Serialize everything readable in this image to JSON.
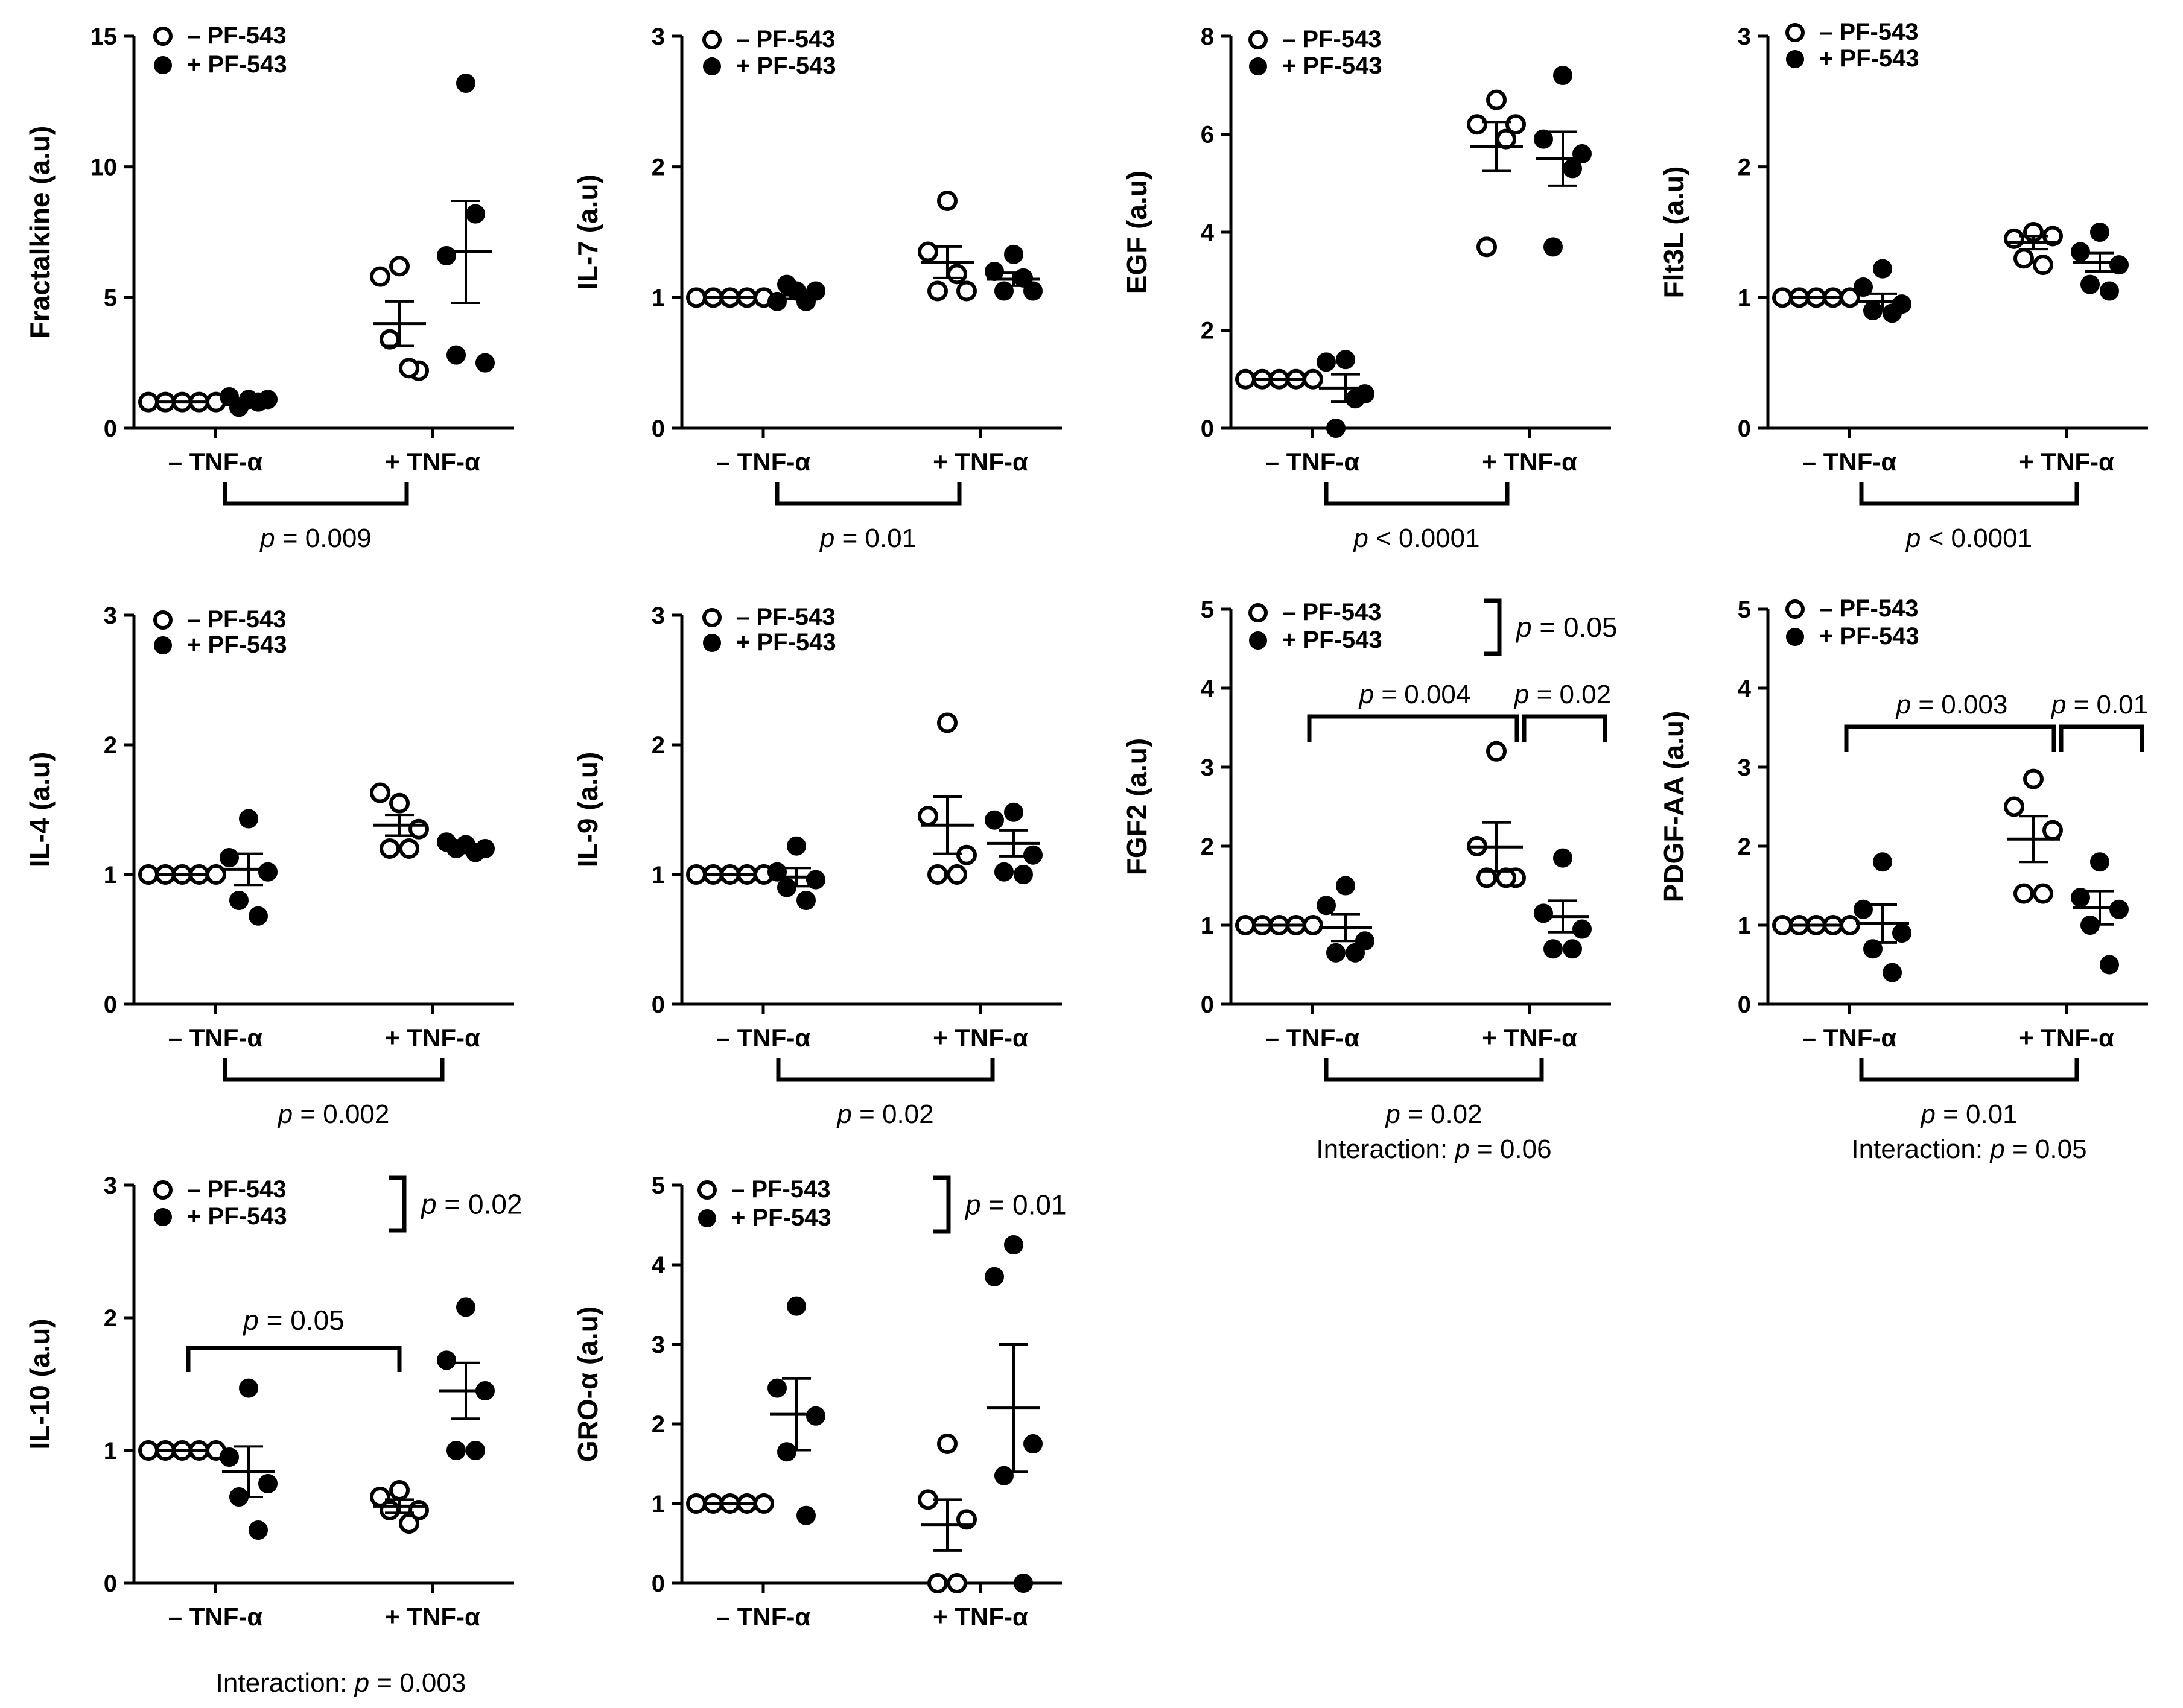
{
  "figure": {
    "x_categories": [
      "– TNF-α",
      "+ TNF-α"
    ],
    "legend": {
      "minus_label": "–  PF-543",
      "plus_label": "+  PF-543"
    },
    "p_prefix": "p",
    "interaction_prefix": "Interaction: "
  },
  "chart_data": [
    {
      "id": "fractalkine",
      "type": "scatter",
      "ylabel": "Fractalkine (a.u)",
      "ylim": [
        0,
        15
      ],
      "yticks": [
        0,
        5,
        10,
        15
      ],
      "groups": [
        {
          "condition": "– TNF-α",
          "treatment": "– PF-543",
          "points": [
            1,
            1,
            1,
            1,
            1
          ],
          "mean": 1,
          "sem": 0
        },
        {
          "condition": "– TNF-α",
          "treatment": "+ PF-543",
          "points": [
            1.1,
            1.2,
            1.1,
            0.8,
            1.0
          ],
          "mean": 1.05,
          "sem": 0.07
        },
        {
          "condition": "+ TNF-α",
          "treatment": "– PF-543",
          "points": [
            6.2,
            5.8,
            2.2,
            3.4,
            2.3
          ],
          "mean": 4.0,
          "sem": 0.85
        },
        {
          "condition": "+ TNF-α",
          "treatment": "+ PF-543",
          "points": [
            13.2,
            6.6,
            2.5,
            2.8,
            8.2
          ],
          "mean": 6.75,
          "sem": 1.95
        }
      ],
      "annotations": {
        "tnf_effect": "p = 0.009"
      }
    },
    {
      "id": "il7",
      "type": "scatter",
      "ylabel": "IL-7 (a.u)",
      "ylim": [
        0,
        3
      ],
      "yticks": [
        0,
        1,
        2,
        3
      ],
      "groups": [
        {
          "condition": "– TNF-α",
          "treatment": "– PF-543",
          "points": [
            1,
            1,
            1,
            1,
            1
          ],
          "mean": 1,
          "sem": 0
        },
        {
          "condition": "– TNF-α",
          "treatment": "+ PF-543",
          "points": [
            1.05,
            0.97,
            1.05,
            1.1,
            0.97
          ],
          "mean": 1.02,
          "sem": 0.03
        },
        {
          "condition": "+ TNF-α",
          "treatment": "– PF-543",
          "points": [
            1.74,
            1.35,
            1.05,
            1.05,
            1.18
          ],
          "mean": 1.27,
          "sem": 0.12
        },
        {
          "condition": "+ TNF-α",
          "treatment": "+ PF-543",
          "points": [
            1.33,
            1.2,
            1.05,
            1.05,
            1.15
          ],
          "mean": 1.14,
          "sem": 0.05
        }
      ],
      "annotations": {
        "tnf_effect": "p = 0.01"
      }
    },
    {
      "id": "egf",
      "type": "scatter",
      "ylabel": "EGF (a.u)",
      "ylim": [
        0,
        8
      ],
      "yticks": [
        0,
        2,
        4,
        6,
        8
      ],
      "groups": [
        {
          "condition": "– TNF-α",
          "treatment": "– PF-543",
          "points": [
            1,
            1,
            1,
            1,
            1
          ],
          "mean": 1,
          "sem": 0
        },
        {
          "condition": "– TNF-α",
          "treatment": "+ PF-543",
          "points": [
            1.4,
            1.35,
            0.7,
            0.0,
            0.6
          ],
          "mean": 0.82,
          "sem": 0.28
        },
        {
          "condition": "+ TNF-α",
          "treatment": "– PF-543",
          "points": [
            6.7,
            6.2,
            6.2,
            3.7,
            5.9
          ],
          "mean": 5.75,
          "sem": 0.5
        },
        {
          "condition": "+ TNF-α",
          "treatment": "+ PF-543",
          "points": [
            7.2,
            5.9,
            5.6,
            3.7,
            5.3
          ],
          "mean": 5.5,
          "sem": 0.55
        }
      ],
      "annotations": {
        "tnf_effect": "p < 0.0001"
      }
    },
    {
      "id": "flt3l",
      "type": "scatter",
      "ylabel": "Flt3L (a.u)",
      "ylim": [
        0,
        3
      ],
      "yticks": [
        0,
        1,
        2,
        3
      ],
      "groups": [
        {
          "condition": "– TNF-α",
          "treatment": "– PF-543",
          "points": [
            1,
            1,
            1,
            1,
            1
          ],
          "mean": 1,
          "sem": 0
        },
        {
          "condition": "– TNF-α",
          "treatment": "+ PF-543",
          "points": [
            1.22,
            1.08,
            0.95,
            0.9,
            0.88
          ],
          "mean": 0.97,
          "sem": 0.06
        },
        {
          "condition": "+ TNF-α",
          "treatment": "– PF-543",
          "points": [
            1.5,
            1.45,
            1.47,
            1.3,
            1.25
          ],
          "mean": 1.42,
          "sem": 0.05
        },
        {
          "condition": "+ TNF-α",
          "treatment": "+ PF-543",
          "points": [
            1.5,
            1.35,
            1.25,
            1.1,
            1.05
          ],
          "mean": 1.27,
          "sem": 0.07
        }
      ],
      "annotations": {
        "tnf_effect": "p < 0.0001"
      }
    },
    {
      "id": "il4",
      "type": "scatter",
      "ylabel": "IL-4 (a.u)",
      "ylim": [
        0,
        3
      ],
      "yticks": [
        0,
        1,
        2,
        3
      ],
      "groups": [
        {
          "condition": "– TNF-α",
          "treatment": "– PF-543",
          "points": [
            1,
            1,
            1,
            1,
            1
          ],
          "mean": 1,
          "sem": 0
        },
        {
          "condition": "– TNF-α",
          "treatment": "+ PF-543",
          "points": [
            1.43,
            1.13,
            1.02,
            0.8,
            0.68
          ],
          "mean": 1.04,
          "sem": 0.12
        },
        {
          "condition": "+ TNF-α",
          "treatment": "– PF-543",
          "points": [
            1.55,
            1.63,
            1.35,
            1.2,
            1.2
          ],
          "mean": 1.38,
          "sem": 0.08
        },
        {
          "condition": "+ TNF-α",
          "treatment": "+ PF-543",
          "points": [
            1.23,
            1.25,
            1.2,
            1.2,
            1.17
          ],
          "mean": 1.21,
          "sem": 0.01
        }
      ],
      "annotations": {
        "tnf_effect": "p = 0.002"
      }
    },
    {
      "id": "il9",
      "type": "scatter",
      "ylabel": "IL-9 (a.u)",
      "ylim": [
        0,
        3
      ],
      "yticks": [
        0,
        1,
        2,
        3
      ],
      "groups": [
        {
          "condition": "– TNF-α",
          "treatment": "– PF-543",
          "points": [
            1,
            1,
            1,
            1,
            1
          ],
          "mean": 1,
          "sem": 0
        },
        {
          "condition": "– TNF-α",
          "treatment": "+ PF-543",
          "points": [
            1.22,
            1.02,
            0.96,
            0.9,
            0.8
          ],
          "mean": 0.98,
          "sem": 0.07
        },
        {
          "condition": "+ TNF-α",
          "treatment": "– PF-543",
          "points": [
            2.17,
            1.45,
            1.15,
            1.0,
            1.0
          ],
          "mean": 1.38,
          "sem": 0.22
        },
        {
          "condition": "+ TNF-α",
          "treatment": "+ PF-543",
          "points": [
            1.48,
            1.42,
            1.15,
            1.02,
            1.0
          ],
          "mean": 1.24,
          "sem": 0.1
        }
      ],
      "annotations": {
        "tnf_effect": "p = 0.02"
      }
    },
    {
      "id": "fgf2",
      "type": "scatter",
      "ylabel": "FGF2 (a.u)",
      "ylim": [
        0,
        5
      ],
      "yticks": [
        0,
        1,
        2,
        3,
        4,
        5
      ],
      "groups": [
        {
          "condition": "– TNF-α",
          "treatment": "– PF-543",
          "points": [
            1,
            1,
            1,
            1,
            1
          ],
          "mean": 1,
          "sem": 0
        },
        {
          "condition": "– TNF-α",
          "treatment": "+ PF-543",
          "points": [
            1.5,
            1.25,
            0.8,
            0.65,
            0.65
          ],
          "mean": 0.97,
          "sem": 0.17
        },
        {
          "condition": "+ TNF-α",
          "treatment": "– PF-543",
          "points": [
            3.2,
            2.0,
            1.6,
            1.6,
            1.6
          ],
          "mean": 1.99,
          "sem": 0.31
        },
        {
          "condition": "+ TNF-α",
          "treatment": "+ PF-543",
          "points": [
            1.85,
            1.15,
            0.95,
            0.7,
            0.7
          ],
          "mean": 1.11,
          "sem": 0.2
        }
      ],
      "annotations": {
        "legend_bracket": "p = 0.05",
        "bracket_left": "p = 0.004",
        "bracket_right": "p = 0.02",
        "tnf_effect": "p = 0.02",
        "interaction": "p = 0.06"
      }
    },
    {
      "id": "pdgfaa",
      "type": "scatter",
      "ylabel": "PDGF-AA (a.u)",
      "ylim": [
        0,
        5
      ],
      "yticks": [
        0,
        1,
        2,
        3,
        4,
        5
      ],
      "groups": [
        {
          "condition": "– TNF-α",
          "treatment": "– PF-543",
          "points": [
            1,
            1,
            1,
            1,
            1
          ],
          "mean": 1,
          "sem": 0
        },
        {
          "condition": "– TNF-α",
          "treatment": "+ PF-543",
          "points": [
            1.8,
            1.2,
            0.9,
            0.7,
            0.4
          ],
          "mean": 1.02,
          "sem": 0.24
        },
        {
          "condition": "+ TNF-α",
          "treatment": "– PF-543",
          "points": [
            2.85,
            2.5,
            2.2,
            1.4,
            1.4
          ],
          "mean": 2.09,
          "sem": 0.29
        },
        {
          "condition": "+ TNF-α",
          "treatment": "+ PF-543",
          "points": [
            1.8,
            1.35,
            1.2,
            1.0,
            0.5
          ],
          "mean": 1.22,
          "sem": 0.21
        }
      ],
      "annotations": {
        "bracket_left": "p = 0.003",
        "bracket_right": "p = 0.01",
        "tnf_effect": "p = 0.01",
        "interaction": "p = 0.05"
      }
    },
    {
      "id": "il10",
      "type": "scatter",
      "ylabel": "IL-10 (a.u)",
      "ylim": [
        0,
        3
      ],
      "yticks": [
        0,
        1,
        2,
        3
      ],
      "groups": [
        {
          "condition": "– TNF-α",
          "treatment": "– PF-543",
          "points": [
            1,
            1,
            1,
            1,
            1
          ],
          "mean": 1,
          "sem": 0
        },
        {
          "condition": "– TNF-α",
          "treatment": "+ PF-543",
          "points": [
            1.47,
            0.95,
            0.75,
            0.65,
            0.4
          ],
          "mean": 0.84,
          "sem": 0.19
        },
        {
          "condition": "+ TNF-α",
          "treatment": "– PF-543",
          "points": [
            0.7,
            0.65,
            0.55,
            0.55,
            0.45
          ],
          "mean": 0.58,
          "sem": 0.05
        },
        {
          "condition": "+ TNF-α",
          "treatment": "+ PF-543",
          "points": [
            2.08,
            1.68,
            1.45,
            1.0,
            1.0
          ],
          "mean": 1.45,
          "sem": 0.21
        }
      ],
      "annotations": {
        "legend_bracket": "p = 0.02",
        "bracket_mid": "p = 0.05",
        "interaction": "p = 0.003"
      }
    },
    {
      "id": "groalpha",
      "type": "scatter",
      "ylabel": "GRO-α (a.u)",
      "ylim": [
        0,
        5
      ],
      "yticks": [
        0,
        1,
        2,
        3,
        4,
        5
      ],
      "groups": [
        {
          "condition": "– TNF-α",
          "treatment": "– PF-543",
          "points": [
            1,
            1,
            1,
            1,
            1
          ],
          "mean": 1,
          "sem": 0
        },
        {
          "condition": "– TNF-α",
          "treatment": "+ PF-543",
          "points": [
            3.48,
            2.45,
            2.1,
            1.65,
            0.85
          ],
          "mean": 2.12,
          "sem": 0.45
        },
        {
          "condition": "+ TNF-α",
          "treatment": "– PF-543",
          "points": [
            1.75,
            1.05,
            0.8,
            0.0,
            0.0
          ],
          "mean": 0.73,
          "sem": 0.32
        },
        {
          "condition": "+ TNF-α",
          "treatment": "+ PF-543",
          "points": [
            4.25,
            3.85,
            1.75,
            1.35,
            0.0
          ],
          "mean": 2.2,
          "sem": 0.8
        }
      ],
      "annotations": {
        "legend_bracket": "p = 0.01"
      }
    }
  ]
}
